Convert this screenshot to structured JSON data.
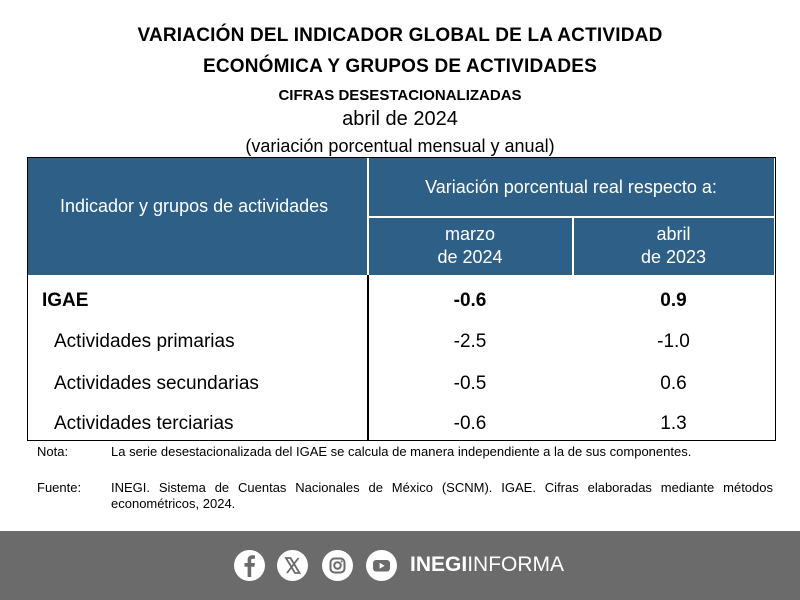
{
  "header": {
    "title_line1": "VARIACIÓN DEL INDICADOR GLOBAL DE LA ACTIVIDAD",
    "title_line2": "ECONÓMICA Y GRUPOS DE ACTIVIDADES",
    "subtitle": "CIFRAS DESESTACIONALIZADAS",
    "period": "abril de 2024",
    "unit": "(variación porcentual mensual y anual)"
  },
  "table": {
    "col_indicator": "Indicador y grupos de actividades",
    "col_group": "Variación porcentual real respecto a:",
    "col_march": [
      "marzo",
      "de 2024"
    ],
    "col_april": [
      "abril",
      "de 2023"
    ],
    "rows": [
      {
        "label": "IGAE",
        "march": "-0.6",
        "april": "0.9",
        "bold": true
      },
      {
        "label": "Actividades primarias",
        "march": "-2.5",
        "april": "-1.0",
        "bold": false
      },
      {
        "label": "Actividades secundarias",
        "march": "-0.5",
        "april": "0.6",
        "bold": false
      },
      {
        "label": "Actividades terciarias",
        "march": "-0.6",
        "april": "1.3",
        "bold": false
      }
    ]
  },
  "notes": {
    "nota_key": "Nota:",
    "nota_text": "La serie desestacionalizada del IGAE se calcula de manera independiente a la de sus componentes.",
    "fuente_key": "Fuente:",
    "fuente_text": "INEGI. Sistema de Cuentas Nacionales de México (SCNM). IGAE. Cifras elaboradas mediante métodos econométricos, 2024."
  },
  "footer": {
    "icons": [
      "facebook-icon",
      "x-icon",
      "instagram-icon",
      "youtube-icon"
    ],
    "brand_bold": "INEGI",
    "brand_light": "INFORMA",
    "bg_color": "#6b6b6b"
  },
  "colors": {
    "header_bg": "#2e5f86",
    "header_text": "#ffffff"
  }
}
